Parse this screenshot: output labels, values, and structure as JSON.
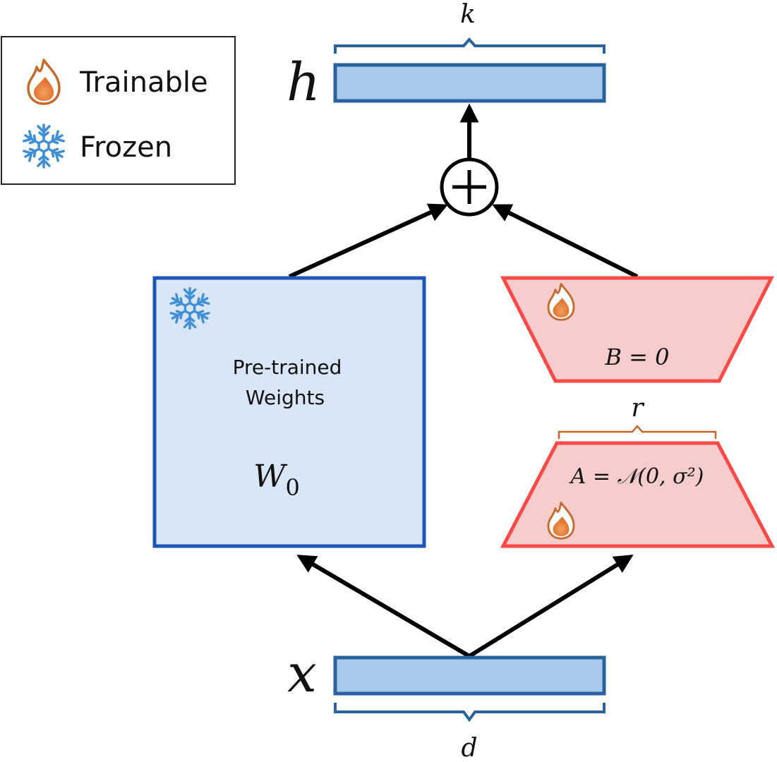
{
  "legend": {
    "trainable_label": "Trainable",
    "frozen_label": "Frozen",
    "trainable_icon": "flame-icon",
    "frozen_icon": "snowflake-icon"
  },
  "output": {
    "symbol": "h",
    "dim_label": "k"
  },
  "input": {
    "symbol": "x",
    "dim_label": "d"
  },
  "pretrained": {
    "title_line1": "Pre-trained",
    "title_line2": "Weights",
    "symbol": "W",
    "subscript": "0"
  },
  "lora_b": {
    "label": "B = 0"
  },
  "lora_a": {
    "label": "A = 𝒩(0, σ²)",
    "rank_label": "r"
  },
  "sum_symbol": "plus-circle-icon",
  "colors": {
    "vector_fill": "#a7c9ec",
    "vector_stroke": "#2a62a0",
    "pretrained_fill": "#d8e6f8",
    "pretrained_stroke": "#1d56b8",
    "lora_fill": "#f7cccc",
    "lora_stroke": "#ff4848",
    "flame_stroke": "#c46a2c",
    "flame_fill": "#ee8a45",
    "snow": "#3f8ed6",
    "brace_rank": "#c7642e"
  }
}
